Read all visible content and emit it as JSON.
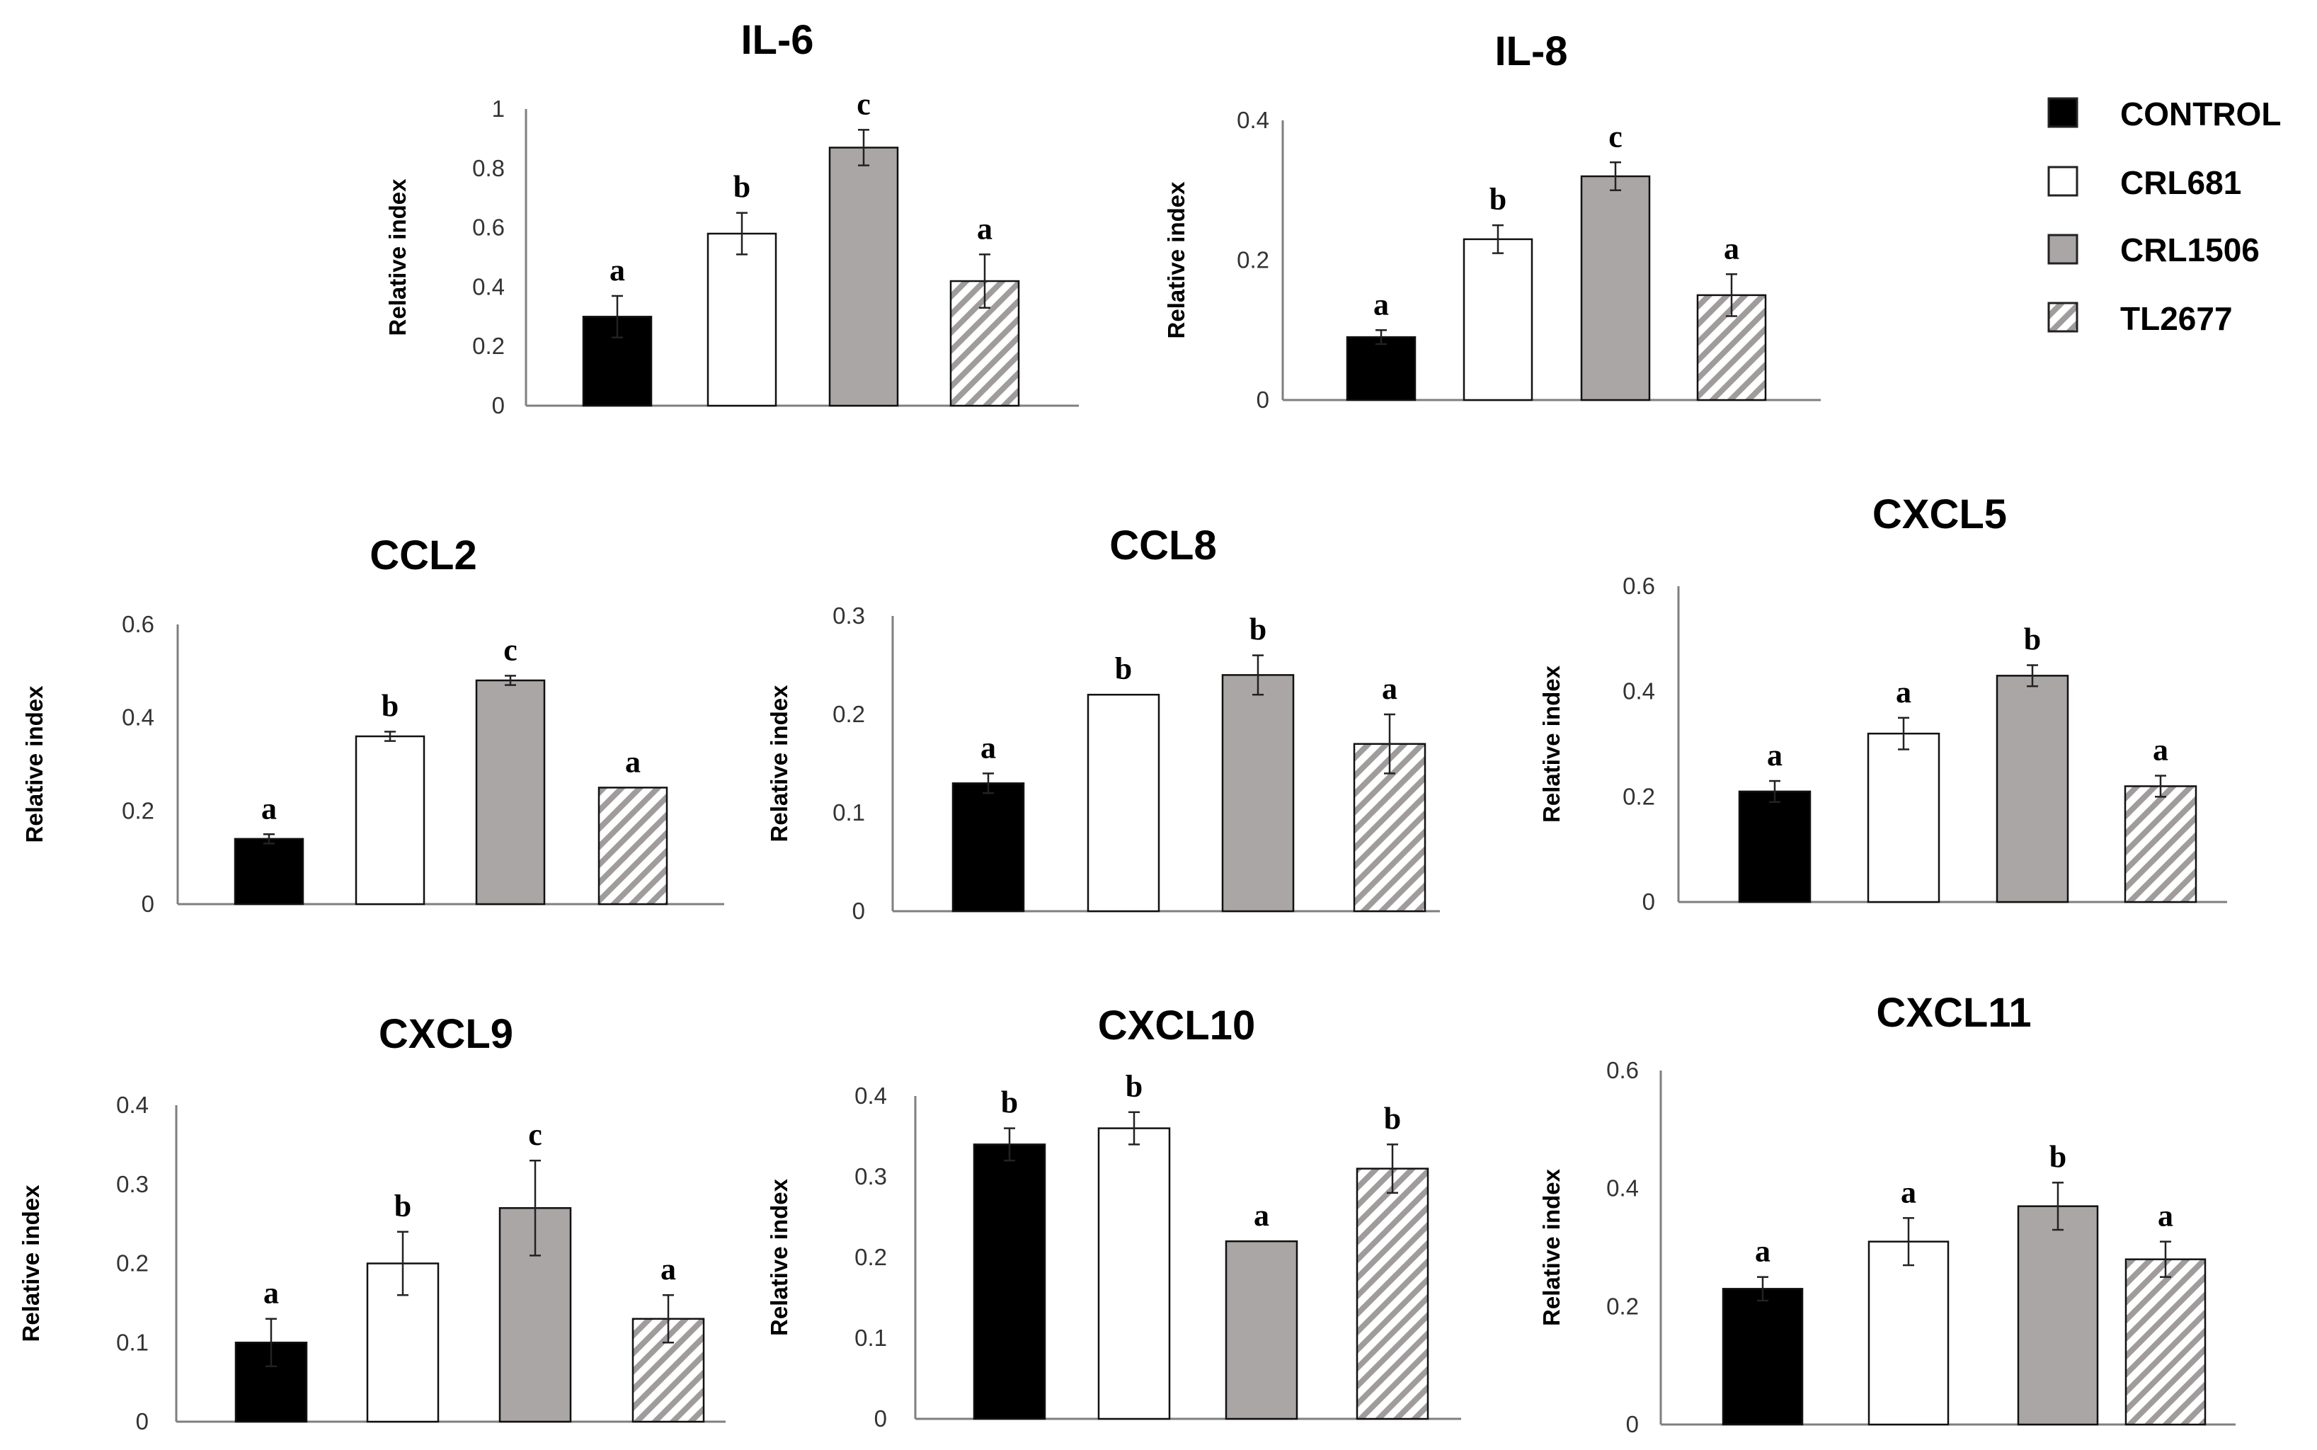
{
  "colors": {
    "control": "#000000",
    "crl681": "#ffffff",
    "crl1506": "#aaa6a6",
    "tl2677": "hatched-white-gray"
  },
  "legend": {
    "items": [
      {
        "label": "CONTROL",
        "style": "control"
      },
      {
        "label": "CRL681",
        "style": "crl681"
      },
      {
        "label": "CRL1506",
        "style": "crl1506"
      },
      {
        "label": "TL2677",
        "style": "tl2677"
      }
    ]
  },
  "chart_data": [
    {
      "type": "bar",
      "title": "IL-6",
      "ylabel": "Relative index",
      "ylim": [
        0,
        1
      ],
      "ticks": [
        "0",
        "0.2",
        "0.4",
        "0.6",
        "0.8",
        "1"
      ],
      "tickValues": [
        0,
        0.2,
        0.4,
        0.6,
        0.8,
        1
      ],
      "categories": [
        "CONTROL",
        "CRL681",
        "CRL1506",
        "TL2677"
      ],
      "values": [
        0.3,
        0.58,
        0.87,
        0.42
      ],
      "errors": [
        0.07,
        0.07,
        0.06,
        0.09
      ],
      "letters": [
        "a",
        "b",
        "c",
        "a"
      ]
    },
    {
      "type": "bar",
      "title": "IL-8",
      "ylabel": "Relative index",
      "ylim": [
        0,
        0.4
      ],
      "ticks": [
        "0",
        "0.2",
        "0.4"
      ],
      "tickValues": [
        0,
        0.2,
        0.4
      ],
      "categories": [
        "CONTROL",
        "CRL681",
        "CRL1506",
        "TL2677"
      ],
      "values": [
        0.09,
        0.23,
        0.32,
        0.15
      ],
      "errors": [
        0.01,
        0.02,
        0.02,
        0.03
      ],
      "letters": [
        "a",
        "b",
        "c",
        "a"
      ]
    },
    {
      "type": "bar",
      "title": "CCL2",
      "ylabel": "Relative index",
      "ylim": [
        0,
        0.6
      ],
      "ticks": [
        "0",
        "0.2",
        "0.4",
        "0.6"
      ],
      "tickValues": [
        0,
        0.2,
        0.4,
        0.6
      ],
      "categories": [
        "CONTROL",
        "CRL681",
        "CRL1506",
        "TL2677"
      ],
      "values": [
        0.14,
        0.36,
        0.48,
        0.25
      ],
      "errors": [
        0.01,
        0.01,
        0.01,
        0
      ],
      "letters": [
        "a",
        "b",
        "c",
        "a"
      ]
    },
    {
      "type": "bar",
      "title": "CCL8",
      "ylabel": "Relative index",
      "ylim": [
        0,
        0.3
      ],
      "ticks": [
        "0",
        "0.1",
        "0.2",
        "0.3"
      ],
      "tickValues": [
        0,
        0.1,
        0.2,
        0.3
      ],
      "categories": [
        "CONTROL",
        "CRL681",
        "CRL1506",
        "TL2677"
      ],
      "values": [
        0.13,
        0.22,
        0.24,
        0.17
      ],
      "errors": [
        0.01,
        0,
        0.02,
        0.03
      ],
      "letters": [
        "a",
        "b",
        "b",
        "a"
      ]
    },
    {
      "type": "bar",
      "title": "CXCL5",
      "ylabel": "Relative index",
      "ylim": [
        0,
        0.6
      ],
      "ticks": [
        "0",
        "0.2",
        "0.4",
        "0.6"
      ],
      "tickValues": [
        0,
        0.2,
        0.4,
        0.6
      ],
      "categories": [
        "CONTROL",
        "CRL681",
        "CRL1506",
        "TL2677"
      ],
      "values": [
        0.21,
        0.32,
        0.43,
        0.22
      ],
      "errors": [
        0.02,
        0.03,
        0.02,
        0.02
      ],
      "letters": [
        "a",
        "a",
        "b",
        "a"
      ]
    },
    {
      "type": "bar",
      "title": "CXCL9",
      "ylabel": "Relative index",
      "ylim": [
        0,
        0.4
      ],
      "ticks": [
        "0",
        "0.1",
        "0.2",
        "0.3",
        "0.4"
      ],
      "tickValues": [
        0,
        0.1,
        0.2,
        0.3,
        0.4
      ],
      "categories": [
        "CONTROL",
        "CRL681",
        "CRL1506",
        "TL2677"
      ],
      "values": [
        0.1,
        0.2,
        0.27,
        0.13
      ],
      "errors": [
        0.03,
        0.04,
        0.06,
        0.03
      ],
      "letters": [
        "a",
        "b",
        "c",
        "a"
      ]
    },
    {
      "type": "bar",
      "title": "CXCL10",
      "ylabel": "Relative index",
      "ylim": [
        0,
        0.4
      ],
      "ticks": [
        "0",
        "0.1",
        "0.2",
        "0.3",
        "0.4"
      ],
      "tickValues": [
        0,
        0.1,
        0.2,
        0.3,
        0.4
      ],
      "categories": [
        "CONTROL",
        "CRL681",
        "CRL1506",
        "TL2677"
      ],
      "values": [
        0.34,
        0.36,
        0.22,
        0.31
      ],
      "errors": [
        0.02,
        0.02,
        0,
        0.03
      ],
      "letters": [
        "b",
        "b",
        "a",
        "b"
      ]
    },
    {
      "type": "bar",
      "title": "CXCL11",
      "ylabel": "Relative index",
      "ylim": [
        0,
        0.6
      ],
      "ticks": [
        "0",
        "0.2",
        "0.4",
        "0.6"
      ],
      "tickValues": [
        0,
        0.2,
        0.4,
        0.6
      ],
      "categories": [
        "CONTROL",
        "CRL681",
        "CRL1506",
        "TL2677"
      ],
      "values": [
        0.23,
        0.31,
        0.37,
        0.28
      ],
      "errors": [
        0.02,
        0.04,
        0.04,
        0.03
      ],
      "letters": [
        "a",
        "a",
        "b",
        "a"
      ]
    }
  ]
}
